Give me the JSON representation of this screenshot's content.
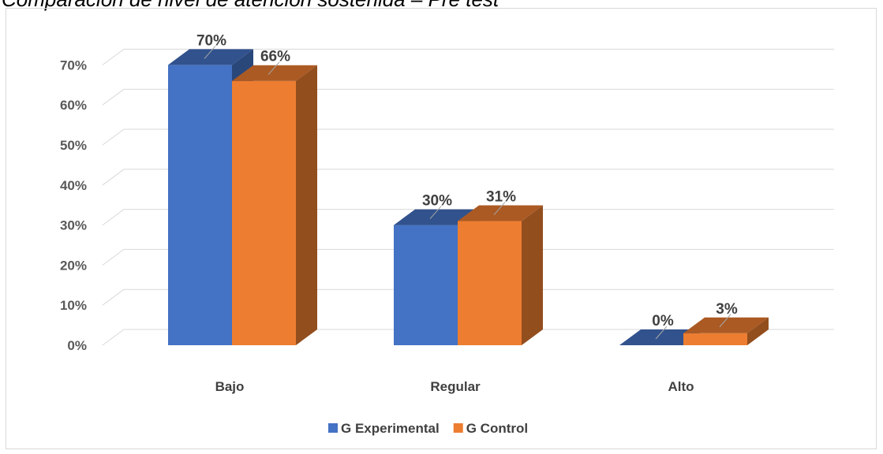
{
  "chart_data": {
    "type": "bar",
    "title": "Comparación de nivel de atención sostenida – Pre test",
    "categories": [
      "Bajo",
      "Regular",
      "Alto"
    ],
    "series": [
      {
        "name": "G Experimental",
        "values": [
          70,
          30,
          0
        ],
        "color": "#4472c4",
        "labels": [
          "70%",
          "30%",
          "0%"
        ]
      },
      {
        "name": "G Control",
        "values": [
          66,
          31,
          3
        ],
        "color": "#ed7d31",
        "labels": [
          "66%",
          "31%",
          "3%"
        ]
      }
    ],
    "ylim": [
      0,
      70
    ],
    "yticks": [
      "0%",
      "10%",
      "20%",
      "30%",
      "40%",
      "50%",
      "60%",
      "70%"
    ],
    "legend": "bottom",
    "grid": true,
    "style": "3d-clustered-column"
  }
}
